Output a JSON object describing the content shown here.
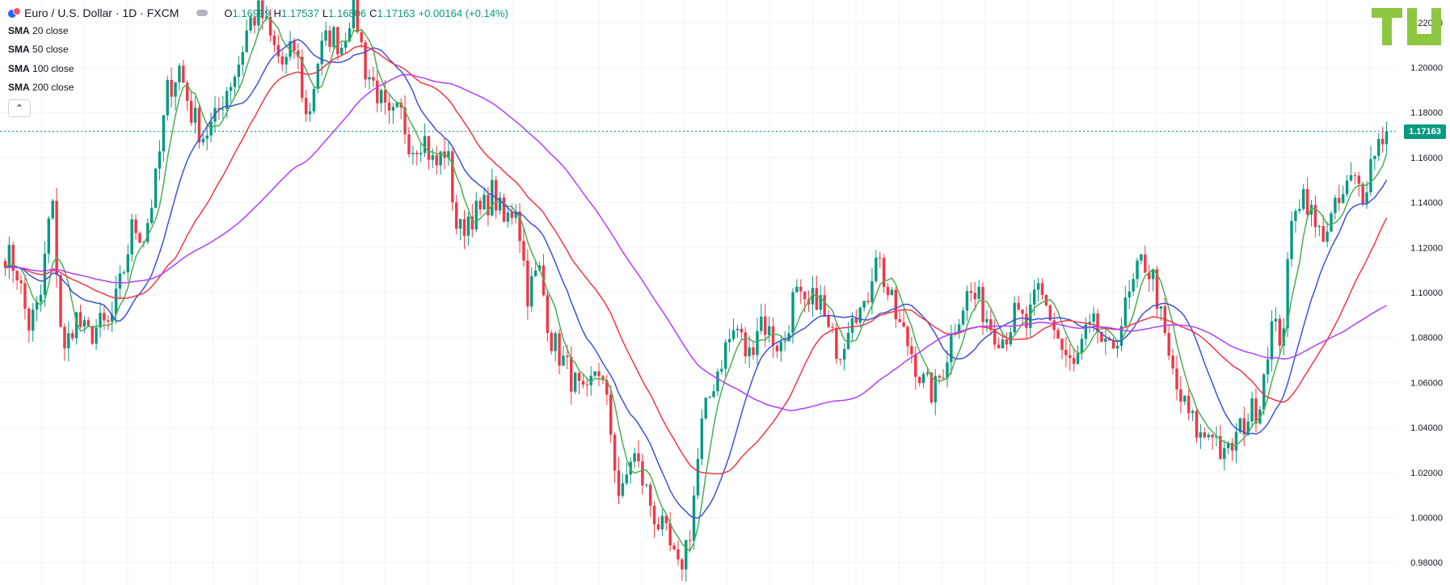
{
  "header": {
    "symbol_title": "Euro / U.S. Dollar · 1D · FXCM",
    "ohlc": [
      {
        "key": "O",
        "value": "1.16999"
      },
      {
        "key": "H",
        "value": "1.17537"
      },
      {
        "key": "L",
        "value": "1.16806"
      },
      {
        "key": "C",
        "value": "1.17163"
      }
    ],
    "change": "+0.00164 (+0.14%)",
    "studies": [
      {
        "name": "SMA",
        "params": "20 close"
      },
      {
        "name": "SMA",
        "params": "50 close"
      },
      {
        "name": "SMA",
        "params": "100 close"
      },
      {
        "name": "SMA",
        "params": "200 close"
      }
    ],
    "collapse_glyph": "⌃"
  },
  "logo_text": "TU",
  "current_price_label": "1.17163",
  "colors": {
    "up": "#089981",
    "down": "#f23645",
    "sma20": "#4caf50",
    "sma50": "#3f51d8",
    "sma100": "#f23645",
    "sma200": "#b33dff",
    "grid": "#f0f3fa",
    "logo": "#8dc63f"
  },
  "chart_data": {
    "type": "candlestick",
    "symbol": "EURUSD",
    "timeframe": "1D",
    "ylim": [
      0.97,
      1.23
    ],
    "y_ticks": [
      "0.98000",
      "1.00000",
      "1.02000",
      "1.04000",
      "1.06000",
      "1.08000",
      "1.10000",
      "1.12000",
      "1.14000",
      "1.16000",
      "1.18000",
      "1.20000",
      "1.22000"
    ],
    "last_price": 1.17163,
    "grid": true,
    "close_path": [
      1.118,
      1.11,
      1.085,
      1.095,
      1.143,
      1.07,
      1.09,
      1.08,
      1.085,
      1.085,
      1.105,
      1.13,
      1.125,
      1.15,
      1.19,
      1.2,
      1.18,
      1.17,
      1.175,
      1.19,
      1.2,
      1.22,
      1.225,
      1.21,
      1.2,
      1.21,
      1.175,
      1.205,
      1.215,
      1.21,
      1.23,
      1.2,
      1.19,
      1.175,
      1.18,
      1.165,
      1.17,
      1.155,
      1.165,
      1.125,
      1.135,
      1.135,
      1.145,
      1.13,
      1.14,
      1.1,
      1.11,
      1.08,
      1.07,
      1.06,
      1.05,
      1.07,
      1.045,
      1.005,
      1.03,
      1.015,
      1.0,
      0.99,
      0.975,
      0.995,
      1.04,
      1.06,
      1.075,
      1.085,
      1.07,
      1.09,
      1.08,
      1.075,
      1.1,
      1.09,
      1.1,
      1.08,
      1.075,
      1.095,
      1.09,
      1.12,
      1.1,
      1.085,
      1.075,
      1.06,
      1.055,
      1.07,
      1.09,
      1.1,
      1.095,
      1.085,
      1.08,
      1.09,
      1.085,
      1.1,
      1.09,
      1.075,
      1.065,
      1.08,
      1.085,
      1.07,
      1.085,
      1.1,
      1.115,
      1.105,
      1.075,
      1.055,
      1.045,
      1.035,
      1.04,
      1.025,
      1.035,
      1.045,
      1.05,
      1.085,
      1.08,
      1.14,
      1.145,
      1.125,
      1.13,
      1.14,
      1.15,
      1.145,
      1.165,
      1.17163
    ],
    "series": [
      {
        "name": "SMA 20 close",
        "period": 20
      },
      {
        "name": "SMA 50 close",
        "period": 50
      },
      {
        "name": "SMA 100 close",
        "period": 100
      },
      {
        "name": "SMA 200 close",
        "period": 200
      }
    ]
  }
}
